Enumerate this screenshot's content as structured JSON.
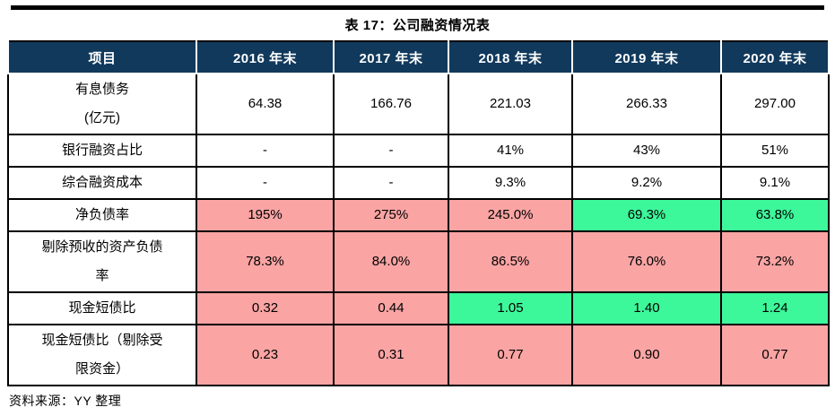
{
  "title": "表 17：公司融资情况表",
  "source": "资料来源：YY 整理",
  "colors": {
    "header_bg": "#11395C",
    "header_text": "#FFFFFF",
    "pink": "#FAA4A4",
    "green": "#3DF79B",
    "border": "#000000"
  },
  "table": {
    "headers": [
      "项目",
      "2016 年末",
      "2017 年末",
      "2018 年末",
      "2019 年末",
      "2020 年末"
    ],
    "rows": [
      {
        "label": "有息债务\n(亿元)",
        "cells": [
          {
            "v": "64.38"
          },
          {
            "v": "166.76"
          },
          {
            "v": "221.03"
          },
          {
            "v": "266.33"
          },
          {
            "v": "297.00"
          }
        ]
      },
      {
        "label": "银行融资占比",
        "cells": [
          {
            "v": "-"
          },
          {
            "v": "-"
          },
          {
            "v": "41%"
          },
          {
            "v": "43%"
          },
          {
            "v": "51%"
          }
        ]
      },
      {
        "label": "综合融资成本",
        "cells": [
          {
            "v": "-"
          },
          {
            "v": "-"
          },
          {
            "v": "9.3%"
          },
          {
            "v": "9.2%"
          },
          {
            "v": "9.1%"
          }
        ]
      },
      {
        "label": "净负债率",
        "cells": [
          {
            "v": "195%",
            "bg": "pink"
          },
          {
            "v": "275%",
            "bg": "pink"
          },
          {
            "v": "245.0%",
            "bg": "pink"
          },
          {
            "v": "69.3%",
            "bg": "green"
          },
          {
            "v": "63.8%",
            "bg": "green"
          }
        ]
      },
      {
        "label": "剔除预收的资产负债\n率",
        "cells": [
          {
            "v": "78.3%",
            "bg": "pink"
          },
          {
            "v": "84.0%",
            "bg": "pink"
          },
          {
            "v": "86.5%",
            "bg": "pink"
          },
          {
            "v": "76.0%",
            "bg": "pink"
          },
          {
            "v": "73.2%",
            "bg": "pink"
          }
        ]
      },
      {
        "label": "现金短债比",
        "cells": [
          {
            "v": "0.32",
            "bg": "pink"
          },
          {
            "v": "0.44",
            "bg": "pink"
          },
          {
            "v": "1.05",
            "bg": "green"
          },
          {
            "v": "1.40",
            "bg": "green"
          },
          {
            "v": "1.24",
            "bg": "green"
          }
        ]
      },
      {
        "label": "现金短债比（剔除受\n限资金）",
        "cells": [
          {
            "v": "0.23",
            "bg": "pink"
          },
          {
            "v": "0.31",
            "bg": "pink"
          },
          {
            "v": "0.77",
            "bg": "pink"
          },
          {
            "v": "0.90",
            "bg": "pink"
          },
          {
            "v": "0.77",
            "bg": "pink"
          }
        ]
      }
    ]
  }
}
